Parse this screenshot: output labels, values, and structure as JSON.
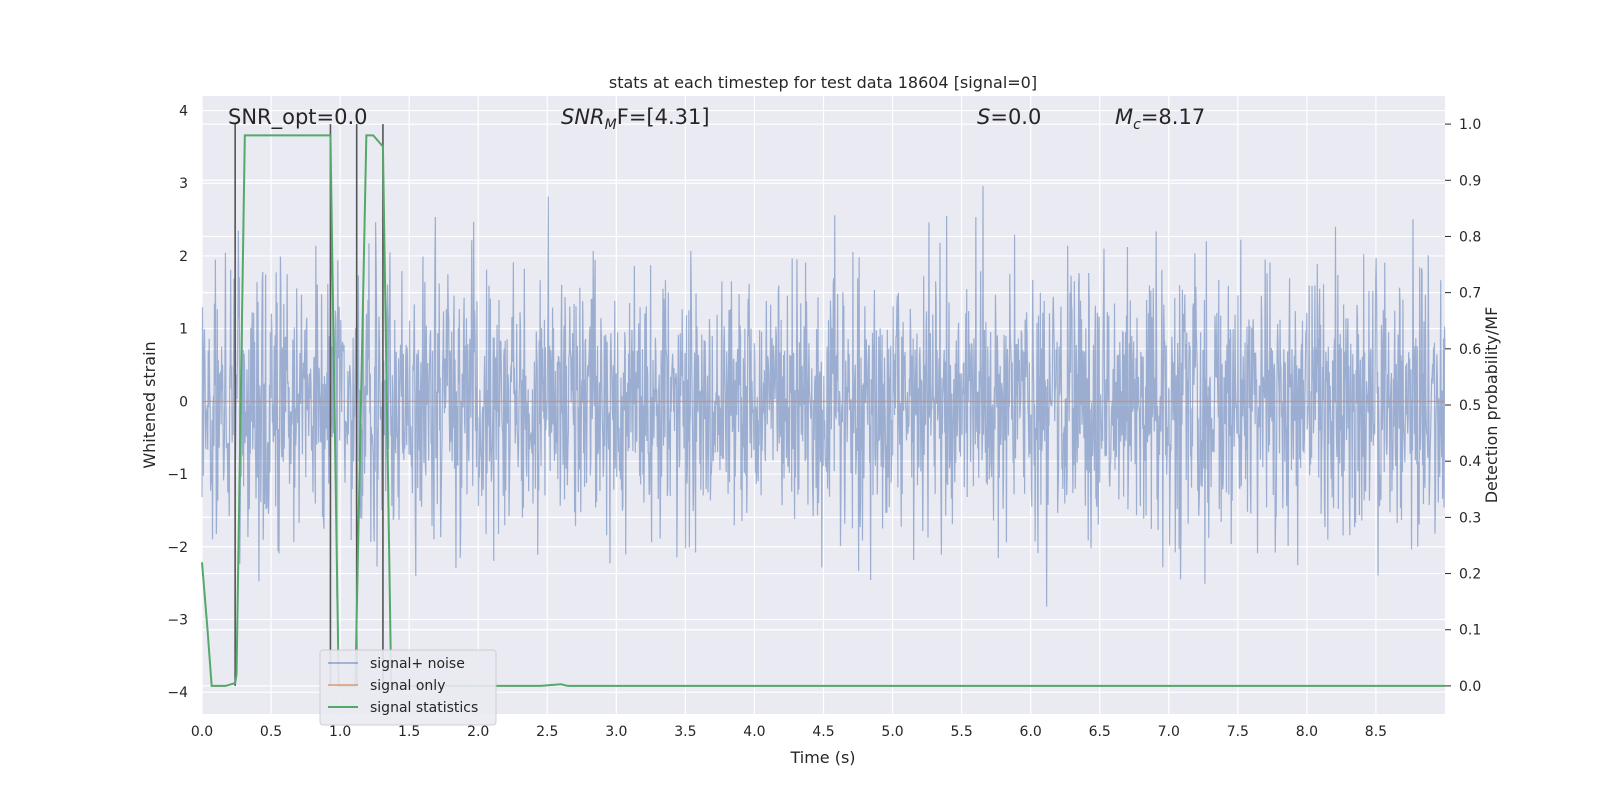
{
  "chart_data": {
    "type": "line",
    "title": "stats at each timestep for test data 18604 [signal=0]",
    "xlabel": "Time (s)",
    "ylabel": "Whitened strain",
    "y2label": "Detection probability/MF",
    "xlim": [
      0.0,
      9.0
    ],
    "ylim": [
      -4.3,
      4.2
    ],
    "y2lim": [
      -0.05,
      1.05
    ],
    "xticks": [
      "0.0",
      "0.5",
      "1.0",
      "1.5",
      "2.0",
      "2.5",
      "3.0",
      "3.5",
      "4.0",
      "4.5",
      "5.0",
      "5.5",
      "6.0",
      "6.5",
      "7.0",
      "7.5",
      "8.0",
      "8.5"
    ],
    "yticks": [
      "4",
      "3",
      "2",
      "1",
      "0",
      "−1",
      "−2",
      "−3",
      "−4"
    ],
    "y2ticks": [
      "1.0",
      "0.9",
      "0.8",
      "0.7",
      "0.6",
      "0.5",
      "0.4",
      "0.3",
      "0.2",
      "0.1",
      "0.0"
    ],
    "annotations": {
      "snr_opt": "SNR_opt=0.0",
      "snr_mf_sym": "SNR",
      "snr_mf_sub": "M",
      "snr_mf_rest": "F=[4.31]",
      "s_sym": "S",
      "s_rest": "=0.0",
      "mc_sym": "M",
      "mc_sub": "c",
      "mc_rest": "=8.17"
    },
    "vertical_markers_s": [
      0.24,
      0.93,
      1.12,
      1.31
    ],
    "series": [
      {
        "name": "signal+ noise",
        "color": "#4c72b0",
        "description": "whitened strain noise, approx. Gaussian, amplitude within about -4 to 4"
      },
      {
        "name": "signal only",
        "color": "#dd8452",
        "x": [
          0.0,
          9.0
        ],
        "values": [
          0.0,
          0.0
        ]
      },
      {
        "name": "signal statistics",
        "color": "#55a868",
        "axis": "right",
        "x": [
          0.0,
          0.04,
          0.07,
          0.17,
          0.24,
          0.25,
          0.31,
          0.93,
          0.99,
          1.11,
          1.19,
          1.24,
          1.31,
          1.37,
          2.45,
          2.6,
          2.65,
          9.0
        ],
        "values": [
          0.22,
          0.1,
          0.0,
          0.0,
          0.005,
          0.02,
          0.98,
          0.98,
          0.0,
          0.0,
          0.98,
          0.98,
          0.96,
          0.0,
          0.0,
          0.003,
          0.0,
          0.0
        ]
      }
    ],
    "legend": {
      "position": "lower-left",
      "entries": [
        "signal+ noise",
        "signal only",
        "signal statistics"
      ]
    },
    "colors": {
      "panel_bg": "#eaeaf2",
      "grid": "#ffffff",
      "marker": "#555555"
    }
  }
}
